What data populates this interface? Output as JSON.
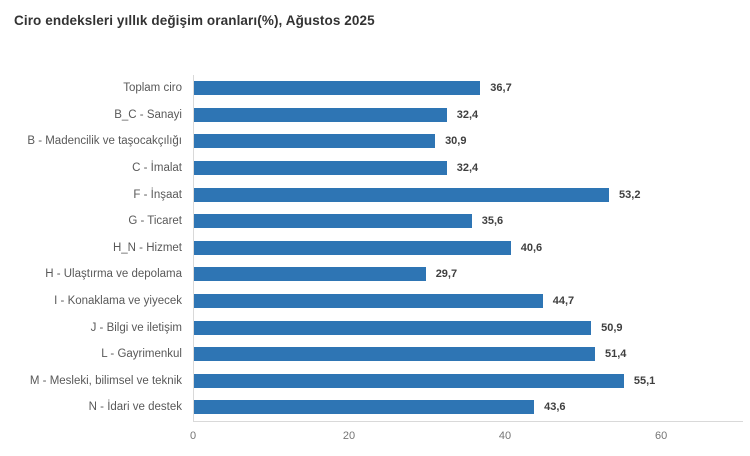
{
  "title": "Ciro endeksleri yıllık değişim oranları(%), Ağustos 2025",
  "chart_data": {
    "type": "bar",
    "orientation": "horizontal",
    "title": "Ciro endeksleri yıllık değişim oranları(%), Ağustos 2025",
    "categories": [
      "Toplam ciro",
      "B_C - Sanayi",
      "B - Madencilik ve taşocakçılığı",
      "C - İmalat",
      "F - İnşaat",
      "G - Ticaret",
      "H_N - Hizmet",
      "H - Ulaştırma ve depolama",
      "I - Konaklama ve yiyecek",
      "J - Bilgi ve iletişim",
      "L - Gayrimenkul",
      "M - Mesleki, bilimsel ve teknik",
      "N - İdari ve destek"
    ],
    "values": [
      36.7,
      32.4,
      30.9,
      32.4,
      53.2,
      35.6,
      40.6,
      29.7,
      44.7,
      50.9,
      51.4,
      55.1,
      43.6
    ],
    "value_labels": [
      "36,7",
      "32,4",
      "30,9",
      "32,4",
      "53,2",
      "35,6",
      "40,6",
      "29,7",
      "44,7",
      "50,9",
      "51,4",
      "55,1",
      "43,6"
    ],
    "xlabel": "",
    "ylabel": "",
    "xlim": [
      0,
      70.5
    ],
    "xticks": [
      "0",
      "20",
      "40",
      "60"
    ],
    "xtick_values": [
      0,
      20,
      40,
      60
    ],
    "grid": false,
    "legend": false,
    "colors": {
      "bar": "#2e75b4",
      "category_label": "#595959",
      "value_label": "#3f3f3f",
      "axis_line": "#d9d9d9",
      "tick_label": "#757575",
      "title": "#333333"
    }
  }
}
